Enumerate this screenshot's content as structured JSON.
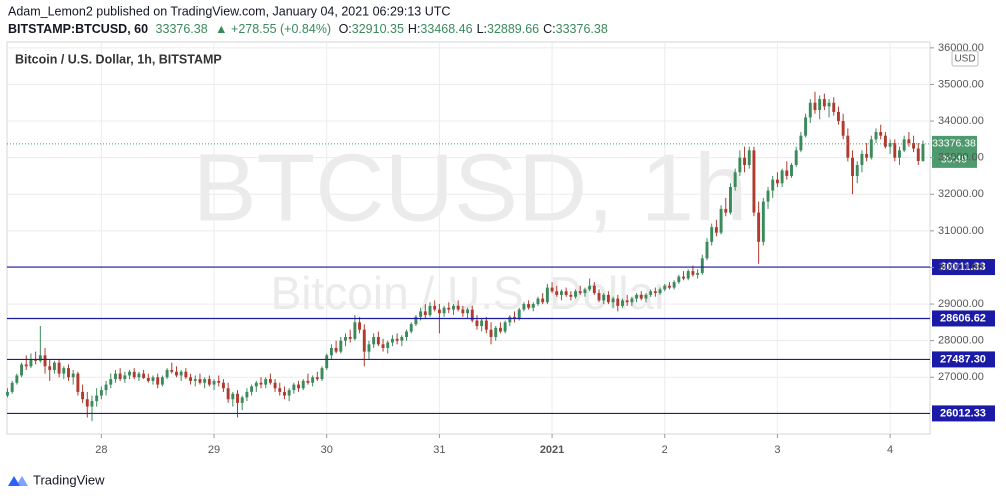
{
  "header": {
    "published": "Adam_Lemon2 published on TradingView.com, January 04, 2021 06:29:13 UTC",
    "symbol": "BITSTAMP:BTCUSD, 60",
    "price": "33376.38",
    "change": "▲ +278.55 (+0.84%)",
    "ohlc": [
      {
        "key": "O:",
        "value": "32910.35"
      },
      {
        "key": "H:",
        "value": "33468.46"
      },
      {
        "key": "L:",
        "value": "32889.66"
      },
      {
        "key": "C:",
        "value": "33376.38"
      }
    ]
  },
  "footer": {
    "brand": "TradingView"
  },
  "chart_data": {
    "type": "candlestick",
    "legend": "Bitcoin / U.S. Dollar, 1h, BITSTAMP",
    "watermark": "BTCUSD, 1h",
    "watermark_sub": "Bitcoin / U.S. Dollar",
    "currency": "USD",
    "up_color": "#3a8a5c",
    "down_color": "#b03a2e",
    "level_color": "#1a1aa6",
    "last_color": "#4e9a6e",
    "last_price": 33376.38,
    "countdown": "30:49",
    "levels": [
      30011.33,
      28606.62,
      27487.3,
      26012.33
    ],
    "level_labels": [
      "30011.33",
      "28606.62",
      "27487.30",
      "26012.33"
    ],
    "xlim": [
      -0.1,
      196.5
    ],
    "ylim": [
      25450,
      36160
    ],
    "grid": true,
    "xticks": [
      {
        "value": 20,
        "label": "28"
      },
      {
        "value": 44,
        "label": "29"
      },
      {
        "value": 68,
        "label": "30"
      },
      {
        "value": 92,
        "label": "31"
      },
      {
        "value": 116,
        "label": "2021"
      },
      {
        "value": 140,
        "label": "2"
      },
      {
        "value": 164,
        "label": "3"
      },
      {
        "value": 188,
        "label": "4"
      }
    ],
    "yticks": [
      {
        "value": 27000,
        "label": "27000.00"
      },
      {
        "value": 28000,
        "label": "28000.00"
      },
      {
        "value": 29000,
        "label": "29000.00"
      },
      {
        "value": 30000,
        "label": "30000.00"
      },
      {
        "value": 31000,
        "label": "31000.00"
      },
      {
        "value": 32000,
        "label": "32000.00"
      },
      {
        "value": 33000,
        "label": "33000.00"
      },
      {
        "value": 34000,
        "label": "34000.00"
      },
      {
        "value": 35000,
        "label": "35000.00"
      },
      {
        "value": 36000,
        "label": "36000.00"
      }
    ],
    "candles": [
      [
        26500,
        26700,
        26450,
        26600
      ],
      [
        26600,
        26900,
        26550,
        26850
      ],
      [
        26850,
        27100,
        26800,
        27050
      ],
      [
        27050,
        27400,
        27000,
        27350
      ],
      [
        27350,
        27600,
        27200,
        27300
      ],
      [
        27300,
        27650,
        27250,
        27500
      ],
      [
        27500,
        27700,
        27350,
        27450
      ],
      [
        27450,
        28400,
        27400,
        27600
      ],
      [
        27600,
        27800,
        27100,
        27300
      ],
      [
        27300,
        27500,
        26900,
        27200
      ],
      [
        27200,
        27450,
        27100,
        27400
      ],
      [
        27400,
        27500,
        27000,
        27100
      ],
      [
        27100,
        27300,
        26950,
        27250
      ],
      [
        27250,
        27350,
        26900,
        27000
      ],
      [
        27000,
        27200,
        26800,
        27100
      ],
      [
        27100,
        27150,
        26500,
        26600
      ],
      [
        26600,
        26800,
        26300,
        26400
      ],
      [
        26400,
        26600,
        25900,
        26200
      ],
      [
        26200,
        26500,
        25800,
        26350
      ],
      [
        26350,
        26700,
        26200,
        26500
      ],
      [
        26500,
        26750,
        26400,
        26650
      ],
      [
        26650,
        26900,
        26500,
        26800
      ],
      [
        26800,
        27100,
        26700,
        26950
      ],
      [
        26950,
        27200,
        26850,
        27100
      ],
      [
        27100,
        27250,
        26900,
        26950
      ],
      [
        26950,
        27150,
        26850,
        27050
      ],
      [
        27050,
        27200,
        26950,
        27150
      ],
      [
        27150,
        27250,
        26950,
        27000
      ],
      [
        27000,
        27150,
        26900,
        27100
      ],
      [
        27100,
        27200,
        26950,
        26980
      ],
      [
        26980,
        27100,
        26850,
        26900
      ],
      [
        26900,
        27050,
        26800,
        27000
      ],
      [
        27000,
        27100,
        26700,
        26800
      ],
      [
        26800,
        27050,
        26750,
        27000
      ],
      [
        27000,
        27250,
        26950,
        27200
      ],
      [
        27200,
        27400,
        27100,
        27150
      ],
      [
        27150,
        27300,
        27000,
        27050
      ],
      [
        27050,
        27200,
        26900,
        27150
      ],
      [
        27150,
        27250,
        26950,
        27000
      ],
      [
        27000,
        27100,
        26800,
        26900
      ],
      [
        26900,
        27050,
        26750,
        26950
      ],
      [
        26950,
        27100,
        26800,
        26850
      ],
      [
        26850,
        27000,
        26700,
        26950
      ],
      [
        26950,
        27050,
        26750,
        26800
      ],
      [
        26800,
        26950,
        26650,
        26900
      ],
      [
        26900,
        27050,
        26750,
        26850
      ],
      [
        26850,
        26950,
        26600,
        26700
      ],
      [
        26700,
        26850,
        26300,
        26400
      ],
      [
        26400,
        26600,
        26200,
        26550
      ],
      [
        26550,
        26650,
        25900,
        26300
      ],
      [
        26300,
        26500,
        26100,
        26450
      ],
      [
        26450,
        26700,
        26350,
        26600
      ],
      [
        26600,
        26800,
        26500,
        26750
      ],
      [
        26750,
        26900,
        26600,
        26850
      ],
      [
        26850,
        27000,
        26700,
        26800
      ],
      [
        26800,
        27000,
        26700,
        26950
      ],
      [
        26950,
        27100,
        26800,
        26850
      ],
      [
        26850,
        26950,
        26600,
        26700
      ],
      [
        26700,
        26850,
        26500,
        26600
      ],
      [
        26600,
        26750,
        26400,
        26500
      ],
      [
        26500,
        26700,
        26350,
        26650
      ],
      [
        26650,
        26850,
        26550,
        26800
      ],
      [
        26800,
        26900,
        26600,
        26700
      ],
      [
        26700,
        26950,
        26650,
        26900
      ],
      [
        26900,
        27100,
        26800,
        26850
      ],
      [
        26850,
        27050,
        26750,
        27000
      ],
      [
        27000,
        27150,
        26900,
        26950
      ],
      [
        26950,
        27300,
        26900,
        27250
      ],
      [
        27250,
        27650,
        27200,
        27600
      ],
      [
        27600,
        27900,
        27500,
        27800
      ],
      [
        27800,
        28000,
        27650,
        27700
      ],
      [
        27700,
        28100,
        27650,
        28000
      ],
      [
        28000,
        28200,
        27850,
        28100
      ],
      [
        28100,
        28300,
        27950,
        28050
      ],
      [
        28050,
        28700,
        28000,
        28500
      ],
      [
        28500,
        28650,
        28200,
        28300
      ],
      [
        28300,
        28450,
        27300,
        27700
      ],
      [
        27700,
        28000,
        27500,
        27900
      ],
      [
        27900,
        28200,
        27800,
        28100
      ],
      [
        28100,
        28250,
        27850,
        27900
      ],
      [
        27900,
        28050,
        27700,
        27800
      ],
      [
        27800,
        28000,
        27650,
        27950
      ],
      [
        27950,
        28150,
        27850,
        28050
      ],
      [
        28050,
        28200,
        27900,
        28000
      ],
      [
        28000,
        28150,
        27850,
        28100
      ],
      [
        28100,
        28300,
        28000,
        28250
      ],
      [
        28250,
        28500,
        28200,
        28450
      ],
      [
        28450,
        28700,
        28400,
        28650
      ],
      [
        28650,
        28900,
        28550,
        28800
      ],
      [
        28800,
        29000,
        28600,
        28700
      ],
      [
        28700,
        29050,
        28650,
        28950
      ],
      [
        28950,
        29100,
        28800,
        28850
      ],
      [
        28850,
        29000,
        28200,
        28750
      ],
      [
        28750,
        28950,
        28650,
        28900
      ],
      [
        28900,
        29050,
        28750,
        28850
      ],
      [
        28850,
        29000,
        28700,
        28950
      ],
      [
        28950,
        29100,
        28800,
        28850
      ],
      [
        28850,
        28950,
        28650,
        28750
      ],
      [
        28750,
        28900,
        28600,
        28850
      ],
      [
        28850,
        28950,
        28500,
        28550
      ],
      [
        28550,
        28700,
        28300,
        28400
      ],
      [
        28400,
        28600,
        28250,
        28550
      ],
      [
        28550,
        28650,
        28200,
        28300
      ],
      [
        28300,
        28500,
        27900,
        28100
      ],
      [
        28100,
        28400,
        28000,
        28350
      ],
      [
        28350,
        28500,
        28200,
        28250
      ],
      [
        28250,
        28550,
        28200,
        28500
      ],
      [
        28500,
        28700,
        28400,
        28650
      ],
      [
        28650,
        28800,
        28500,
        28600
      ],
      [
        28600,
        28900,
        28550,
        28850
      ],
      [
        28850,
        29050,
        28800,
        29000
      ],
      [
        29000,
        29100,
        28850,
        28900
      ],
      [
        28900,
        29050,
        28800,
        29000
      ],
      [
        29000,
        29200,
        28950,
        29150
      ],
      [
        29150,
        29300,
        29000,
        29050
      ],
      [
        29050,
        29550,
        29000,
        29450
      ],
      [
        29450,
        29600,
        29300,
        29350
      ],
      [
        29350,
        29500,
        29200,
        29250
      ],
      [
        29250,
        29400,
        29100,
        29350
      ],
      [
        29350,
        29450,
        29200,
        29250
      ],
      [
        29250,
        29350,
        29100,
        29200
      ],
      [
        29200,
        29400,
        29150,
        29350
      ],
      [
        29350,
        29500,
        29250,
        29300
      ],
      [
        29300,
        29450,
        29200,
        29400
      ],
      [
        29400,
        29700,
        29350,
        29500
      ],
      [
        29500,
        29600,
        29250,
        29300
      ],
      [
        29300,
        29400,
        29050,
        29100
      ],
      [
        29100,
        29300,
        29000,
        29250
      ],
      [
        29250,
        29350,
        29000,
        29050
      ],
      [
        29050,
        29200,
        28900,
        29150
      ],
      [
        29150,
        29250,
        28800,
        28950
      ],
      [
        28950,
        29150,
        28900,
        29100
      ],
      [
        29100,
        29250,
        28950,
        29050
      ],
      [
        29050,
        29200,
        28950,
        29150
      ],
      [
        29150,
        29300,
        29050,
        29250
      ],
      [
        29250,
        29350,
        29100,
        29150
      ],
      [
        29150,
        29300,
        29050,
        29250
      ],
      [
        29250,
        29400,
        29200,
        29350
      ],
      [
        29350,
        29450,
        29200,
        29300
      ],
      [
        29300,
        29450,
        29250,
        29400
      ],
      [
        29400,
        29550,
        29350,
        29500
      ],
      [
        29500,
        29600,
        29400,
        29450
      ],
      [
        29450,
        29650,
        29400,
        29600
      ],
      [
        29600,
        29800,
        29550,
        29750
      ],
      [
        29750,
        29900,
        29650,
        29700
      ],
      [
        29700,
        29950,
        29650,
        29900
      ],
      [
        29900,
        30050,
        29750,
        29800
      ],
      [
        29800,
        29950,
        29700,
        29850
      ],
      [
        29850,
        30350,
        29800,
        30250
      ],
      [
        30250,
        30800,
        30200,
        30700
      ],
      [
        30700,
        31200,
        30600,
        31100
      ],
      [
        31100,
        31300,
        30850,
        30950
      ],
      [
        30950,
        31700,
        30900,
        31600
      ],
      [
        31600,
        31900,
        31400,
        31500
      ],
      [
        31500,
        32300,
        31450,
        32200
      ],
      [
        32200,
        32700,
        32100,
        32600
      ],
      [
        32600,
        33200,
        32500,
        33000
      ],
      [
        33000,
        33300,
        32600,
        32800
      ],
      [
        32800,
        33300,
        32700,
        33200
      ],
      [
        33200,
        33300,
        31400,
        31500
      ],
      [
        31500,
        31800,
        30100,
        30700
      ],
      [
        30700,
        31900,
        30600,
        31800
      ],
      [
        31800,
        32200,
        31600,
        32100
      ],
      [
        32100,
        32500,
        31900,
        32400
      ],
      [
        32400,
        32600,
        32200,
        32300
      ],
      [
        32300,
        32700,
        32200,
        32650
      ],
      [
        32650,
        32900,
        32400,
        32500
      ],
      [
        32500,
        32850,
        32450,
        32800
      ],
      [
        32800,
        33300,
        32750,
        33200
      ],
      [
        33200,
        33700,
        33150,
        33600
      ],
      [
        33600,
        34200,
        33550,
        34100
      ],
      [
        34100,
        34600,
        33950,
        34500
      ],
      [
        34500,
        34800,
        34200,
        34300
      ],
      [
        34300,
        34700,
        34050,
        34600
      ],
      [
        34600,
        34750,
        34300,
        34400
      ],
      [
        34400,
        34600,
        34100,
        34500
      ],
      [
        34500,
        34650,
        34150,
        34250
      ],
      [
        34250,
        34400,
        33900,
        34000
      ],
      [
        34000,
        34200,
        33500,
        33600
      ],
      [
        33600,
        33800,
        32900,
        33000
      ],
      [
        33000,
        33200,
        32000,
        32500
      ],
      [
        32500,
        32900,
        32300,
        32800
      ],
      [
        32800,
        33200,
        32600,
        33100
      ],
      [
        33100,
        33400,
        32900,
        33000
      ],
      [
        33000,
        33600,
        32950,
        33500
      ],
      [
        33500,
        33800,
        33400,
        33700
      ],
      [
        33700,
        33900,
        33500,
        33600
      ],
      [
        33600,
        33700,
        33250,
        33300
      ],
      [
        33300,
        33500,
        33100,
        33400
      ],
      [
        33400,
        33500,
        32900,
        33000
      ],
      [
        33000,
        33300,
        32800,
        33200
      ],
      [
        33200,
        33600,
        33150,
        33500
      ],
      [
        33500,
        33700,
        33300,
        33400
      ],
      [
        33400,
        33600,
        33150,
        33250
      ],
      [
        33250,
        33400,
        32800,
        32910
      ],
      [
        32910,
        33468,
        32889,
        33376.38
      ]
    ]
  }
}
